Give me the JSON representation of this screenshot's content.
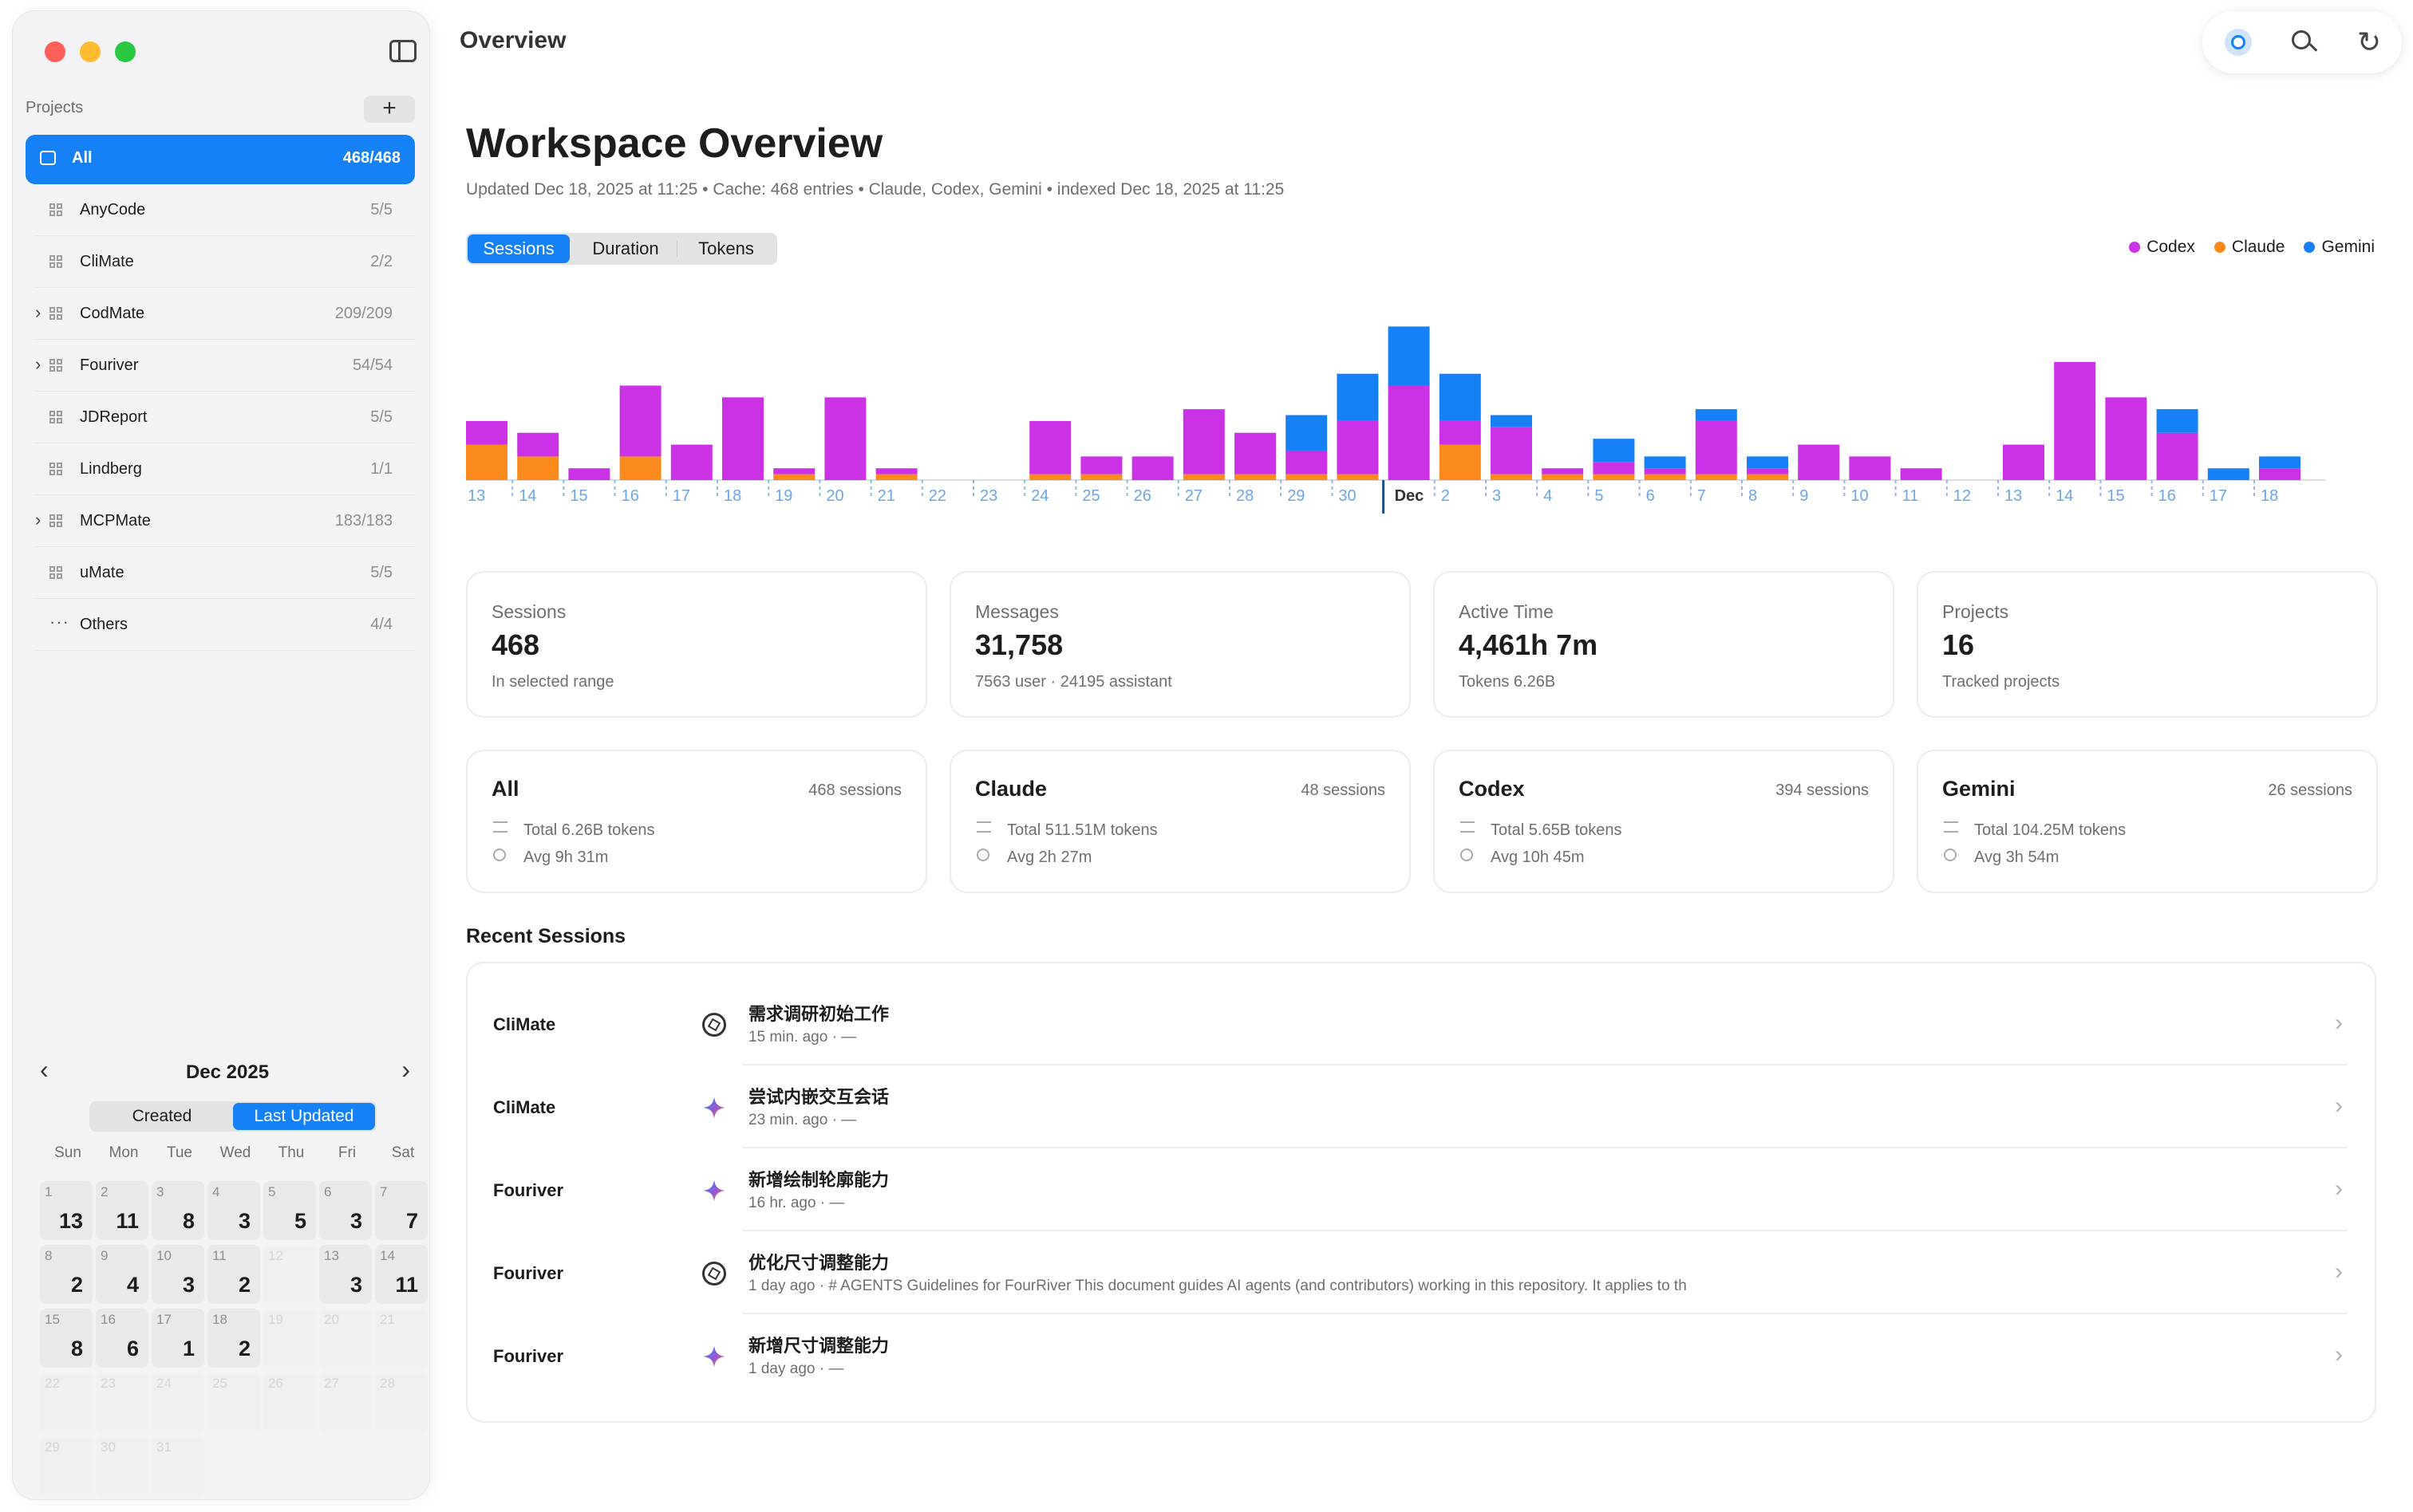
{
  "header": {
    "title": "Overview"
  },
  "sidebar": {
    "projects_label": "Projects",
    "add_label": "+",
    "all": {
      "label": "All",
      "count": "468/468"
    },
    "items": [
      {
        "label": "AnyCode",
        "count": "5/5",
        "expandable": false,
        "icon": "grid-icon"
      },
      {
        "label": "CliMate",
        "count": "2/2",
        "expandable": false,
        "icon": "grid-icon"
      },
      {
        "label": "CodMate",
        "count": "209/209",
        "expandable": true,
        "icon": "grid-icon"
      },
      {
        "label": "Fouriver",
        "count": "54/54",
        "expandable": true,
        "icon": "grid-icon"
      },
      {
        "label": "JDReport",
        "count": "5/5",
        "expandable": false,
        "icon": "grid-icon"
      },
      {
        "label": "Lindberg",
        "count": "1/1",
        "expandable": false,
        "icon": "grid-icon"
      },
      {
        "label": "MCPMate",
        "count": "183/183",
        "expandable": true,
        "icon": "grid-icon"
      },
      {
        "label": "uMate",
        "count": "5/5",
        "expandable": false,
        "icon": "grid-icon"
      },
      {
        "label": "Others",
        "count": "4/4",
        "expandable": false,
        "icon": "ellipsis-icon"
      }
    ]
  },
  "calendar": {
    "title": "Dec 2025",
    "modes": {
      "created": "Created",
      "updated": "Last Updated"
    },
    "dow": [
      "Sun",
      "Mon",
      "Tue",
      "Wed",
      "Thu",
      "Fri",
      "Sat"
    ],
    "days": [
      {
        "d": "1",
        "c": "13"
      },
      {
        "d": "2",
        "c": "11"
      },
      {
        "d": "3",
        "c": "8"
      },
      {
        "d": "4",
        "c": "3"
      },
      {
        "d": "5",
        "c": "5"
      },
      {
        "d": "6",
        "c": "3"
      },
      {
        "d": "7",
        "c": "7"
      },
      {
        "d": "8",
        "c": "2"
      },
      {
        "d": "9",
        "c": "4"
      },
      {
        "d": "10",
        "c": "3"
      },
      {
        "d": "11",
        "c": "2"
      },
      {
        "d": "12",
        "c": ""
      },
      {
        "d": "13",
        "c": "3"
      },
      {
        "d": "14",
        "c": "11"
      },
      {
        "d": "15",
        "c": "8"
      },
      {
        "d": "16",
        "c": "6"
      },
      {
        "d": "17",
        "c": "1"
      },
      {
        "d": "18",
        "c": "2"
      },
      {
        "d": "19",
        "c": ""
      },
      {
        "d": "20",
        "c": ""
      },
      {
        "d": "21",
        "c": ""
      },
      {
        "d": "22",
        "c": ""
      },
      {
        "d": "23",
        "c": ""
      },
      {
        "d": "24",
        "c": ""
      },
      {
        "d": "25",
        "c": ""
      },
      {
        "d": "26",
        "c": ""
      },
      {
        "d": "27",
        "c": ""
      },
      {
        "d": "28",
        "c": ""
      },
      {
        "d": "29",
        "c": ""
      },
      {
        "d": "30",
        "c": ""
      },
      {
        "d": "31",
        "c": ""
      }
    ]
  },
  "workspace": {
    "title": "Workspace Overview",
    "subtitle": "Updated Dec 18, 2025 at 11:25 • Cache: 468 entries • Claude, Codex, Gemini • indexed Dec 18, 2025 at 11:25",
    "metric_tabs": {
      "sessions": "Sessions",
      "duration": "Duration",
      "tokens": "Tokens"
    }
  },
  "colors": {
    "codex": "#cb32e6",
    "claude": "#fb8a1c",
    "gemini": "#1681f6",
    "accent": "#1681f6"
  },
  "chart_data": {
    "type": "bar",
    "stacked": true,
    "title": "",
    "xlabel": "",
    "ylabel": "",
    "categories": [
      "13",
      "14",
      "15",
      "16",
      "17",
      "18",
      "19",
      "20",
      "21",
      "22",
      "23",
      "24",
      "25",
      "26",
      "27",
      "28",
      "29",
      "30",
      "Dec",
      "2",
      "3",
      "4",
      "5",
      "6",
      "7",
      "8",
      "9",
      "10",
      "11",
      "12",
      "13",
      "14",
      "15",
      "16",
      "17",
      "18"
    ],
    "highlight_label": "Dec",
    "series": [
      {
        "name": "Claude",
        "values": [
          6,
          4,
          0,
          4,
          0,
          0,
          1,
          0,
          1,
          0,
          0,
          1,
          1,
          0,
          1,
          1,
          1,
          1,
          0,
          6,
          1,
          1,
          1,
          1,
          1,
          1,
          0,
          0,
          0,
          0,
          0,
          0,
          0,
          0,
          0,
          0
        ]
      },
      {
        "name": "Codex",
        "values": [
          4,
          4,
          2,
          12,
          6,
          14,
          1,
          14,
          1,
          0,
          0,
          9,
          3,
          4,
          11,
          7,
          4,
          9,
          16,
          4,
          8,
          1,
          2,
          1,
          9,
          1,
          6,
          4,
          2,
          0,
          6,
          20,
          14,
          8,
          0,
          2
        ]
      },
      {
        "name": "Gemini",
        "values": [
          0,
          0,
          0,
          0,
          0,
          0,
          0,
          0,
          0,
          0,
          0,
          0,
          0,
          0,
          0,
          0,
          6,
          8,
          10,
          8,
          2,
          0,
          4,
          2,
          2,
          2,
          0,
          0,
          0,
          0,
          0,
          0,
          0,
          4,
          2,
          2
        ]
      }
    ],
    "ylim": [
      0,
      27
    ],
    "legend": [
      "Codex",
      "Claude",
      "Gemini"
    ],
    "legend_position": "top-right"
  },
  "stats": [
    {
      "label": "Sessions",
      "value": "468",
      "sub": "In selected range"
    },
    {
      "label": "Messages",
      "value": "31,758",
      "sub": "7563 user · 24195 assistant"
    },
    {
      "label": "Active Time",
      "value": "4,461h 7m",
      "sub": "Tokens 6.26B"
    },
    {
      "label": "Projects",
      "value": "16",
      "sub": "Tracked projects"
    }
  ],
  "providers": [
    {
      "name": "All",
      "sessions": "468 sessions",
      "tokens": "Total 6.26B tokens",
      "avg": "Avg 9h 31m"
    },
    {
      "name": "Claude",
      "sessions": "48 sessions",
      "tokens": "Total 511.51M tokens",
      "avg": "Avg 2h 27m"
    },
    {
      "name": "Codex",
      "sessions": "394 sessions",
      "tokens": "Total 5.65B tokens",
      "avg": "Avg 10h 45m"
    },
    {
      "name": "Gemini",
      "sessions": "26 sessions",
      "tokens": "Total 104.25M tokens",
      "avg": "Avg 3h 54m"
    }
  ],
  "recent": {
    "heading": "Recent Sessions",
    "rows": [
      {
        "project": "CliMate",
        "icon": "openai-icon",
        "title": "需求调研初始工作",
        "meta": "15 min. ago  ·  —"
      },
      {
        "project": "CliMate",
        "icon": "gemini-icon",
        "title": "尝试内嵌交互会话",
        "meta": "23 min. ago  ·  —"
      },
      {
        "project": "Fouriver",
        "icon": "gemini-icon",
        "title": "新增绘制轮廓能力",
        "meta": "16 hr. ago  ·  —"
      },
      {
        "project": "Fouriver",
        "icon": "openai-icon",
        "title": "优化尺寸调整能力",
        "meta": "1 day ago  ·  # AGENTS Guidelines for FourRiver This document guides AI agents (and contributors) working in this repository. It applies to th"
      },
      {
        "project": "Fouriver",
        "icon": "gemini-icon",
        "title": "新增尺寸调整能力",
        "meta": "1 day ago  ·  —"
      }
    ]
  }
}
